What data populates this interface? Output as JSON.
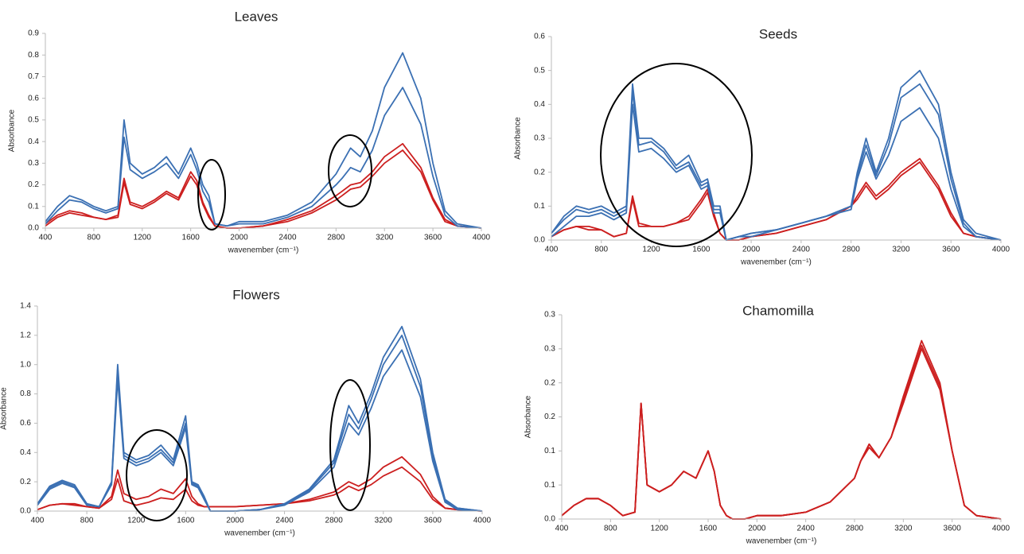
{
  "chart_data": [
    {
      "type": "line",
      "title": "Leaves",
      "xlabel": "wavenember (cm⁻¹)",
      "ylabel": "Absorbance",
      "x": [
        400,
        500,
        600,
        700,
        800,
        900,
        1000,
        1050,
        1100,
        1200,
        1300,
        1400,
        1500,
        1600,
        1650,
        1700,
        1750,
        1800,
        1900,
        2000,
        2200,
        2400,
        2600,
        2800,
        2850,
        2920,
        3000,
        3100,
        3200,
        3350,
        3500,
        3600,
        3700,
        3800,
        4000
      ],
      "xlim": [
        400,
        4000
      ],
      "xticks": [
        400,
        800,
        1200,
        1600,
        2000,
        2400,
        2800,
        3200,
        3600,
        4000
      ],
      "ylim": [
        0,
        0.9
      ],
      "yticks": [
        {
          "value": 0,
          "label": "0.0"
        },
        0.1,
        0.2,
        0.3,
        0.4,
        0.5,
        0.6,
        0.7,
        0.8,
        0.9
      ],
      "series": [
        {
          "color": "#3b70b3",
          "values": [
            0.03,
            0.1,
            0.15,
            0.13,
            0.1,
            0.08,
            0.1,
            0.5,
            0.3,
            0.25,
            0.28,
            0.33,
            0.25,
            0.37,
            0.3,
            0.2,
            0.15,
            0.02,
            0.01,
            0.03,
            0.03,
            0.06,
            0.12,
            0.25,
            0.3,
            0.37,
            0.33,
            0.45,
            0.65,
            0.81,
            0.6,
            0.3,
            0.08,
            0.02,
            0
          ]
        },
        {
          "color": "#3b70b3",
          "values": [
            0.02,
            0.08,
            0.13,
            0.12,
            0.09,
            0.07,
            0.09,
            0.42,
            0.27,
            0.23,
            0.26,
            0.3,
            0.23,
            0.34,
            0.27,
            0.17,
            0.12,
            0.02,
            0.01,
            0.02,
            0.02,
            0.05,
            0.1,
            0.2,
            0.23,
            0.28,
            0.26,
            0.36,
            0.52,
            0.65,
            0.48,
            0.24,
            0.06,
            0.01,
            0
          ]
        },
        {
          "color": "#cc1f1f",
          "values": [
            0.02,
            0.06,
            0.08,
            0.07,
            0.05,
            0.04,
            0.06,
            0.23,
            0.12,
            0.1,
            0.13,
            0.17,
            0.14,
            0.26,
            0.22,
            0.12,
            0.06,
            0.01,
            0,
            0,
            0.01,
            0.04,
            0.08,
            0.15,
            0.17,
            0.2,
            0.21,
            0.26,
            0.33,
            0.39,
            0.28,
            0.14,
            0.04,
            0.01,
            0
          ]
        },
        {
          "color": "#cc1f1f",
          "values": [
            0.01,
            0.05,
            0.07,
            0.06,
            0.05,
            0.04,
            0.05,
            0.21,
            0.11,
            0.09,
            0.12,
            0.16,
            0.13,
            0.24,
            0.2,
            0.11,
            0.05,
            0.01,
            0,
            0,
            0.01,
            0.03,
            0.07,
            0.13,
            0.15,
            0.18,
            0.19,
            0.24,
            0.3,
            0.36,
            0.26,
            0.13,
            0.03,
            0.01,
            0
          ]
        }
      ]
    },
    {
      "type": "line",
      "title": "Seeds",
      "xlabel": "wavenember (cm⁻¹)",
      "ylabel": "Absorbance",
      "x": [
        400,
        500,
        600,
        700,
        800,
        900,
        1000,
        1050,
        1100,
        1200,
        1300,
        1400,
        1500,
        1600,
        1650,
        1700,
        1750,
        1800,
        1900,
        2000,
        2200,
        2400,
        2600,
        2800,
        2850,
        2920,
        3000,
        3100,
        3200,
        3350,
        3500,
        3600,
        3700,
        3800,
        4000
      ],
      "xlim": [
        400,
        4000
      ],
      "xticks": [
        400,
        800,
        1200,
        1600,
        2000,
        2400,
        2800,
        3200,
        3600,
        4000
      ],
      "ylim": [
        0,
        0.6
      ],
      "yticks": [
        {
          "value": 0,
          "label": "0.0"
        },
        0.1,
        0.2,
        0.3,
        0.4,
        0.5,
        0.6
      ],
      "series": [
        {
          "color": "#3b70b3",
          "values": [
            0.02,
            0.07,
            0.1,
            0.09,
            0.1,
            0.08,
            0.1,
            0.46,
            0.3,
            0.3,
            0.27,
            0.22,
            0.25,
            0.17,
            0.18,
            0.1,
            0.1,
            0,
            0.01,
            0.02,
            0.03,
            0.05,
            0.07,
            0.1,
            0.2,
            0.3,
            0.2,
            0.3,
            0.45,
            0.5,
            0.4,
            0.2,
            0.06,
            0.02,
            0
          ]
        },
        {
          "color": "#3b70b3",
          "values": [
            0.02,
            0.06,
            0.09,
            0.08,
            0.09,
            0.07,
            0.09,
            0.44,
            0.28,
            0.29,
            0.26,
            0.21,
            0.23,
            0.16,
            0.17,
            0.09,
            0.09,
            0,
            0.01,
            0.02,
            0.03,
            0.05,
            0.07,
            0.1,
            0.19,
            0.28,
            0.19,
            0.28,
            0.42,
            0.46,
            0.37,
            0.18,
            0.05,
            0.01,
            0
          ]
        },
        {
          "color": "#3b70b3",
          "values": [
            0.01,
            0.04,
            0.07,
            0.07,
            0.08,
            0.06,
            0.08,
            0.4,
            0.26,
            0.27,
            0.24,
            0.2,
            0.22,
            0.15,
            0.16,
            0.08,
            0.08,
            0,
            0.01,
            0.01,
            0.03,
            0.05,
            0.07,
            0.09,
            0.18,
            0.26,
            0.18,
            0.25,
            0.35,
            0.39,
            0.3,
            0.15,
            0.04,
            0.01,
            0
          ]
        },
        {
          "color": "#cc1f1f",
          "values": [
            0.01,
            0.03,
            0.04,
            0.04,
            0.03,
            0.01,
            0.02,
            0.13,
            0.05,
            0.04,
            0.04,
            0.05,
            0.07,
            0.12,
            0.15,
            0.08,
            0.02,
            0,
            0,
            0.01,
            0.02,
            0.04,
            0.06,
            0.1,
            0.13,
            0.17,
            0.13,
            0.16,
            0.2,
            0.24,
            0.16,
            0.08,
            0.02,
            0.01,
            0
          ]
        },
        {
          "color": "#cc1f1f",
          "values": [
            0.01,
            0.03,
            0.04,
            0.03,
            0.03,
            0.01,
            0.02,
            0.12,
            0.04,
            0.04,
            0.04,
            0.05,
            0.06,
            0.11,
            0.14,
            0.07,
            0.02,
            0,
            0,
            0.01,
            0.02,
            0.04,
            0.06,
            0.1,
            0.12,
            0.16,
            0.12,
            0.15,
            0.19,
            0.23,
            0.15,
            0.07,
            0.02,
            0.01,
            0
          ]
        }
      ]
    },
    {
      "type": "line",
      "title": "Flowers",
      "xlabel": "wavenember (cm⁻¹)",
      "ylabel": "Absorbance",
      "x": [
        400,
        500,
        600,
        700,
        800,
        900,
        1000,
        1050,
        1100,
        1200,
        1300,
        1400,
        1500,
        1600,
        1650,
        1700,
        1750,
        1800,
        1900,
        2000,
        2200,
        2400,
        2600,
        2800,
        2850,
        2920,
        3000,
        3100,
        3200,
        3350,
        3500,
        3600,
        3700,
        3800,
        4000
      ],
      "xlim": [
        400,
        4000
      ],
      "xticks": [
        400,
        800,
        1200,
        1600,
        2000,
        2400,
        2800,
        3200,
        3600,
        4000
      ],
      "ylim": [
        0,
        1.4
      ],
      "yticks": [
        {
          "value": 0,
          "label": "0.0"
        },
        0.2,
        0.4,
        0.6,
        0.8,
        {
          "value": 1,
          "label": "1.0"
        },
        1.2,
        1.4
      ],
      "series": [
        {
          "color": "#3b70b3",
          "values": [
            0.05,
            0.17,
            0.21,
            0.18,
            0.05,
            0.03,
            0.2,
            1.0,
            0.4,
            0.35,
            0.38,
            0.45,
            0.35,
            0.65,
            0.2,
            0.18,
            0.1,
            0,
            0,
            0,
            0.01,
            0.05,
            0.15,
            0.35,
            0.5,
            0.72,
            0.6,
            0.8,
            1.05,
            1.26,
            0.9,
            0.4,
            0.08,
            0.02,
            0
          ]
        },
        {
          "color": "#3b70b3",
          "values": [
            0.04,
            0.16,
            0.2,
            0.17,
            0.05,
            0.03,
            0.19,
            0.97,
            0.38,
            0.33,
            0.36,
            0.42,
            0.33,
            0.6,
            0.19,
            0.17,
            0.09,
            0,
            0,
            0,
            0.01,
            0.05,
            0.14,
            0.33,
            0.47,
            0.66,
            0.56,
            0.76,
            1.0,
            1.2,
            0.85,
            0.37,
            0.07,
            0.02,
            0
          ]
        },
        {
          "color": "#3b70b3",
          "values": [
            0.04,
            0.15,
            0.19,
            0.16,
            0.04,
            0.03,
            0.18,
            0.9,
            0.36,
            0.31,
            0.34,
            0.4,
            0.31,
            0.57,
            0.18,
            0.16,
            0.08,
            0,
            0,
            0,
            0.01,
            0.04,
            0.13,
            0.3,
            0.43,
            0.6,
            0.52,
            0.7,
            0.92,
            1.1,
            0.78,
            0.34,
            0.06,
            0.01,
            0
          ]
        },
        {
          "color": "#cc1f1f",
          "values": [
            0.01,
            0.04,
            0.05,
            0.05,
            0.03,
            0.02,
            0.1,
            0.28,
            0.12,
            0.08,
            0.1,
            0.15,
            0.12,
            0.22,
            0.1,
            0.05,
            0.03,
            0.03,
            0.03,
            0.03,
            0.04,
            0.05,
            0.08,
            0.13,
            0.16,
            0.2,
            0.17,
            0.22,
            0.3,
            0.37,
            0.25,
            0.1,
            0.02,
            0.01,
            0
          ]
        },
        {
          "color": "#cc1f1f",
          "values": [
            0.01,
            0.04,
            0.05,
            0.04,
            0.03,
            0.02,
            0.08,
            0.22,
            0.07,
            0.04,
            0.06,
            0.09,
            0.08,
            0.15,
            0.07,
            0.04,
            0.03,
            0.03,
            0.03,
            0.03,
            0.04,
            0.05,
            0.07,
            0.11,
            0.13,
            0.17,
            0.14,
            0.18,
            0.24,
            0.3,
            0.2,
            0.08,
            0.02,
            0.01,
            0
          ]
        }
      ]
    },
    {
      "type": "line",
      "title": "Chamomilla",
      "xlabel": "wavenember (cm⁻¹)",
      "ylabel": "Absorbance",
      "x": [
        400,
        500,
        600,
        700,
        800,
        900,
        1000,
        1050,
        1100,
        1200,
        1300,
        1400,
        1500,
        1600,
        1650,
        1700,
        1750,
        1800,
        1900,
        2000,
        2200,
        2400,
        2600,
        2800,
        2850,
        2920,
        3000,
        3100,
        3200,
        3350,
        3500,
        3600,
        3700,
        3800,
        4000
      ],
      "xlim": [
        400,
        4000
      ],
      "xticks": [
        400,
        800,
        1200,
        1600,
        2000,
        2400,
        2800,
        3200,
        3600,
        4000
      ],
      "ylim": [
        0,
        0.3
      ],
      "yticks": [
        {
          "value": 0,
          "label": "0.0"
        },
        {
          "value": 0.05,
          "label": "0.1"
        },
        0.1,
        {
          "value": 0.15,
          "label": "0.2"
        },
        0.2,
        {
          "value": 0.25,
          "label": "0.3"
        },
        0.3
      ],
      "series": [
        {
          "color": "#cc1f1f",
          "values": [
            0.005,
            0.02,
            0.03,
            0.03,
            0.02,
            0.005,
            0.01,
            0.17,
            0.05,
            0.04,
            0.05,
            0.07,
            0.06,
            0.1,
            0.07,
            0.02,
            0.005,
            0,
            0,
            0.005,
            0.005,
            0.01,
            0.025,
            0.06,
            0.085,
            0.11,
            0.09,
            0.12,
            0.18,
            0.262,
            0.2,
            0.1,
            0.02,
            0.005,
            0
          ]
        },
        {
          "color": "#cc1f1f",
          "values": [
            0.005,
            0.02,
            0.03,
            0.03,
            0.02,
            0.005,
            0.01,
            0.17,
            0.05,
            0.04,
            0.05,
            0.07,
            0.06,
            0.1,
            0.07,
            0.02,
            0.005,
            0,
            0,
            0.005,
            0.005,
            0.01,
            0.025,
            0.06,
            0.085,
            0.11,
            0.09,
            0.12,
            0.175,
            0.255,
            0.195,
            0.1,
            0.02,
            0.005,
            0
          ]
        },
        {
          "color": "#cc1f1f",
          "values": [
            0.005,
            0.02,
            0.03,
            0.03,
            0.02,
            0.005,
            0.01,
            0.17,
            0.05,
            0.04,
            0.05,
            0.07,
            0.06,
            0.1,
            0.07,
            0.02,
            0.005,
            0,
            0,
            0.005,
            0.005,
            0.01,
            0.025,
            0.06,
            0.085,
            0.105,
            0.09,
            0.12,
            0.17,
            0.25,
            0.19,
            0.1,
            0.02,
            0.005,
            0
          ]
        }
      ]
    }
  ]
}
